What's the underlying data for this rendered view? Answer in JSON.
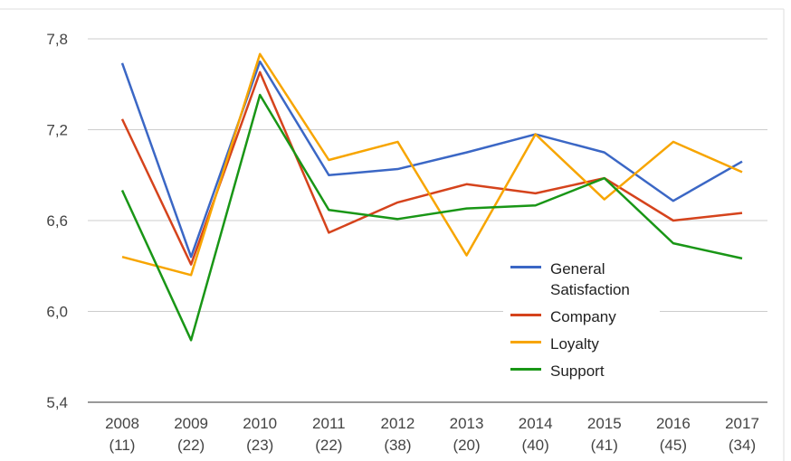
{
  "chart_data": {
    "type": "line",
    "categories": [
      [
        "2008",
        "(11)"
      ],
      [
        "2009",
        "(22)"
      ],
      [
        "2010",
        "(23)"
      ],
      [
        "2011",
        "(22)"
      ],
      [
        "2012",
        "(38)"
      ],
      [
        "2013",
        "(20)"
      ],
      [
        "2014",
        "(40)"
      ],
      [
        "2015",
        "(41)"
      ],
      [
        "2016",
        "(45)"
      ],
      [
        "2017",
        "(34)"
      ]
    ],
    "series": [
      {
        "name": "General Satisfaction",
        "color": "#3b67c5",
        "values": [
          7.64,
          6.36,
          7.65,
          6.9,
          6.94,
          7.05,
          7.17,
          7.05,
          6.73,
          6.99
        ]
      },
      {
        "name": "Company",
        "color": "#d5431c",
        "values": [
          7.27,
          6.31,
          7.58,
          6.52,
          6.72,
          6.84,
          6.78,
          6.88,
          6.6,
          6.65
        ]
      },
      {
        "name": "Loyalty",
        "color": "#f7a500",
        "values": [
          6.36,
          6.24,
          7.7,
          7.0,
          7.12,
          6.37,
          7.17,
          6.74,
          7.12,
          6.92
        ]
      },
      {
        "name": "Support",
        "color": "#199616",
        "values": [
          6.8,
          5.81,
          7.43,
          6.67,
          6.61,
          6.68,
          6.7,
          6.88,
          6.45,
          6.35
        ]
      }
    ],
    "ylim": [
      5.4,
      7.8
    ],
    "yticks": [
      {
        "value": 5.4,
        "label": "5,4"
      },
      {
        "value": 6.0,
        "label": "6,0"
      },
      {
        "value": 6.6,
        "label": "6,6"
      },
      {
        "value": 7.2,
        "label": "7,2"
      },
      {
        "value": 7.8,
        "label": "7,8"
      }
    ],
    "grid": true
  }
}
